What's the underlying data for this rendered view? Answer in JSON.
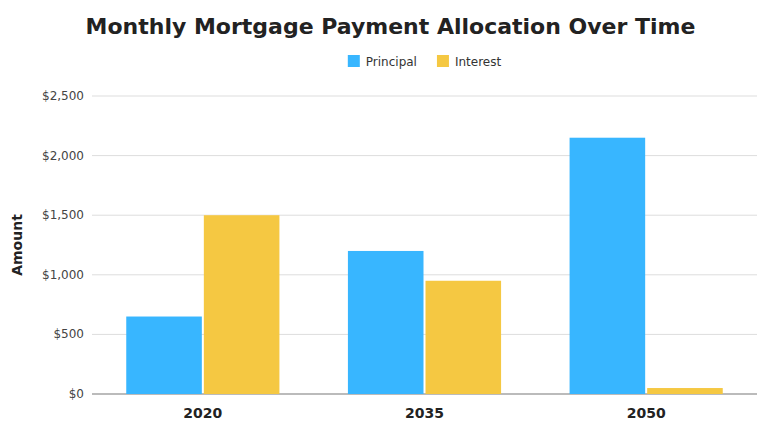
{
  "chart_data": {
    "type": "bar",
    "title": "Monthly Mortgage Payment Allocation Over Time",
    "categories": [
      "2020",
      "2035",
      "2050"
    ],
    "series": [
      {
        "name": "Principal",
        "color": "#38B6FF",
        "values": [
          650,
          1200,
          2150
        ]
      },
      {
        "name": "Interest",
        "color": "#F5C842",
        "values": [
          1500,
          950,
          50
        ]
      }
    ],
    "ylabel": "Amount",
    "ylim": [
      0,
      2500
    ],
    "yticks": [
      {
        "value": 0,
        "label": "$0"
      },
      {
        "value": 500,
        "label": "$500"
      },
      {
        "value": 1000,
        "label": "$1,000"
      },
      {
        "value": 1500,
        "label": "$1,500"
      },
      {
        "value": 2000,
        "label": "$2,000"
      },
      {
        "value": 2500,
        "label": "$2,500"
      }
    ],
    "grid": true,
    "legend": "top"
  }
}
